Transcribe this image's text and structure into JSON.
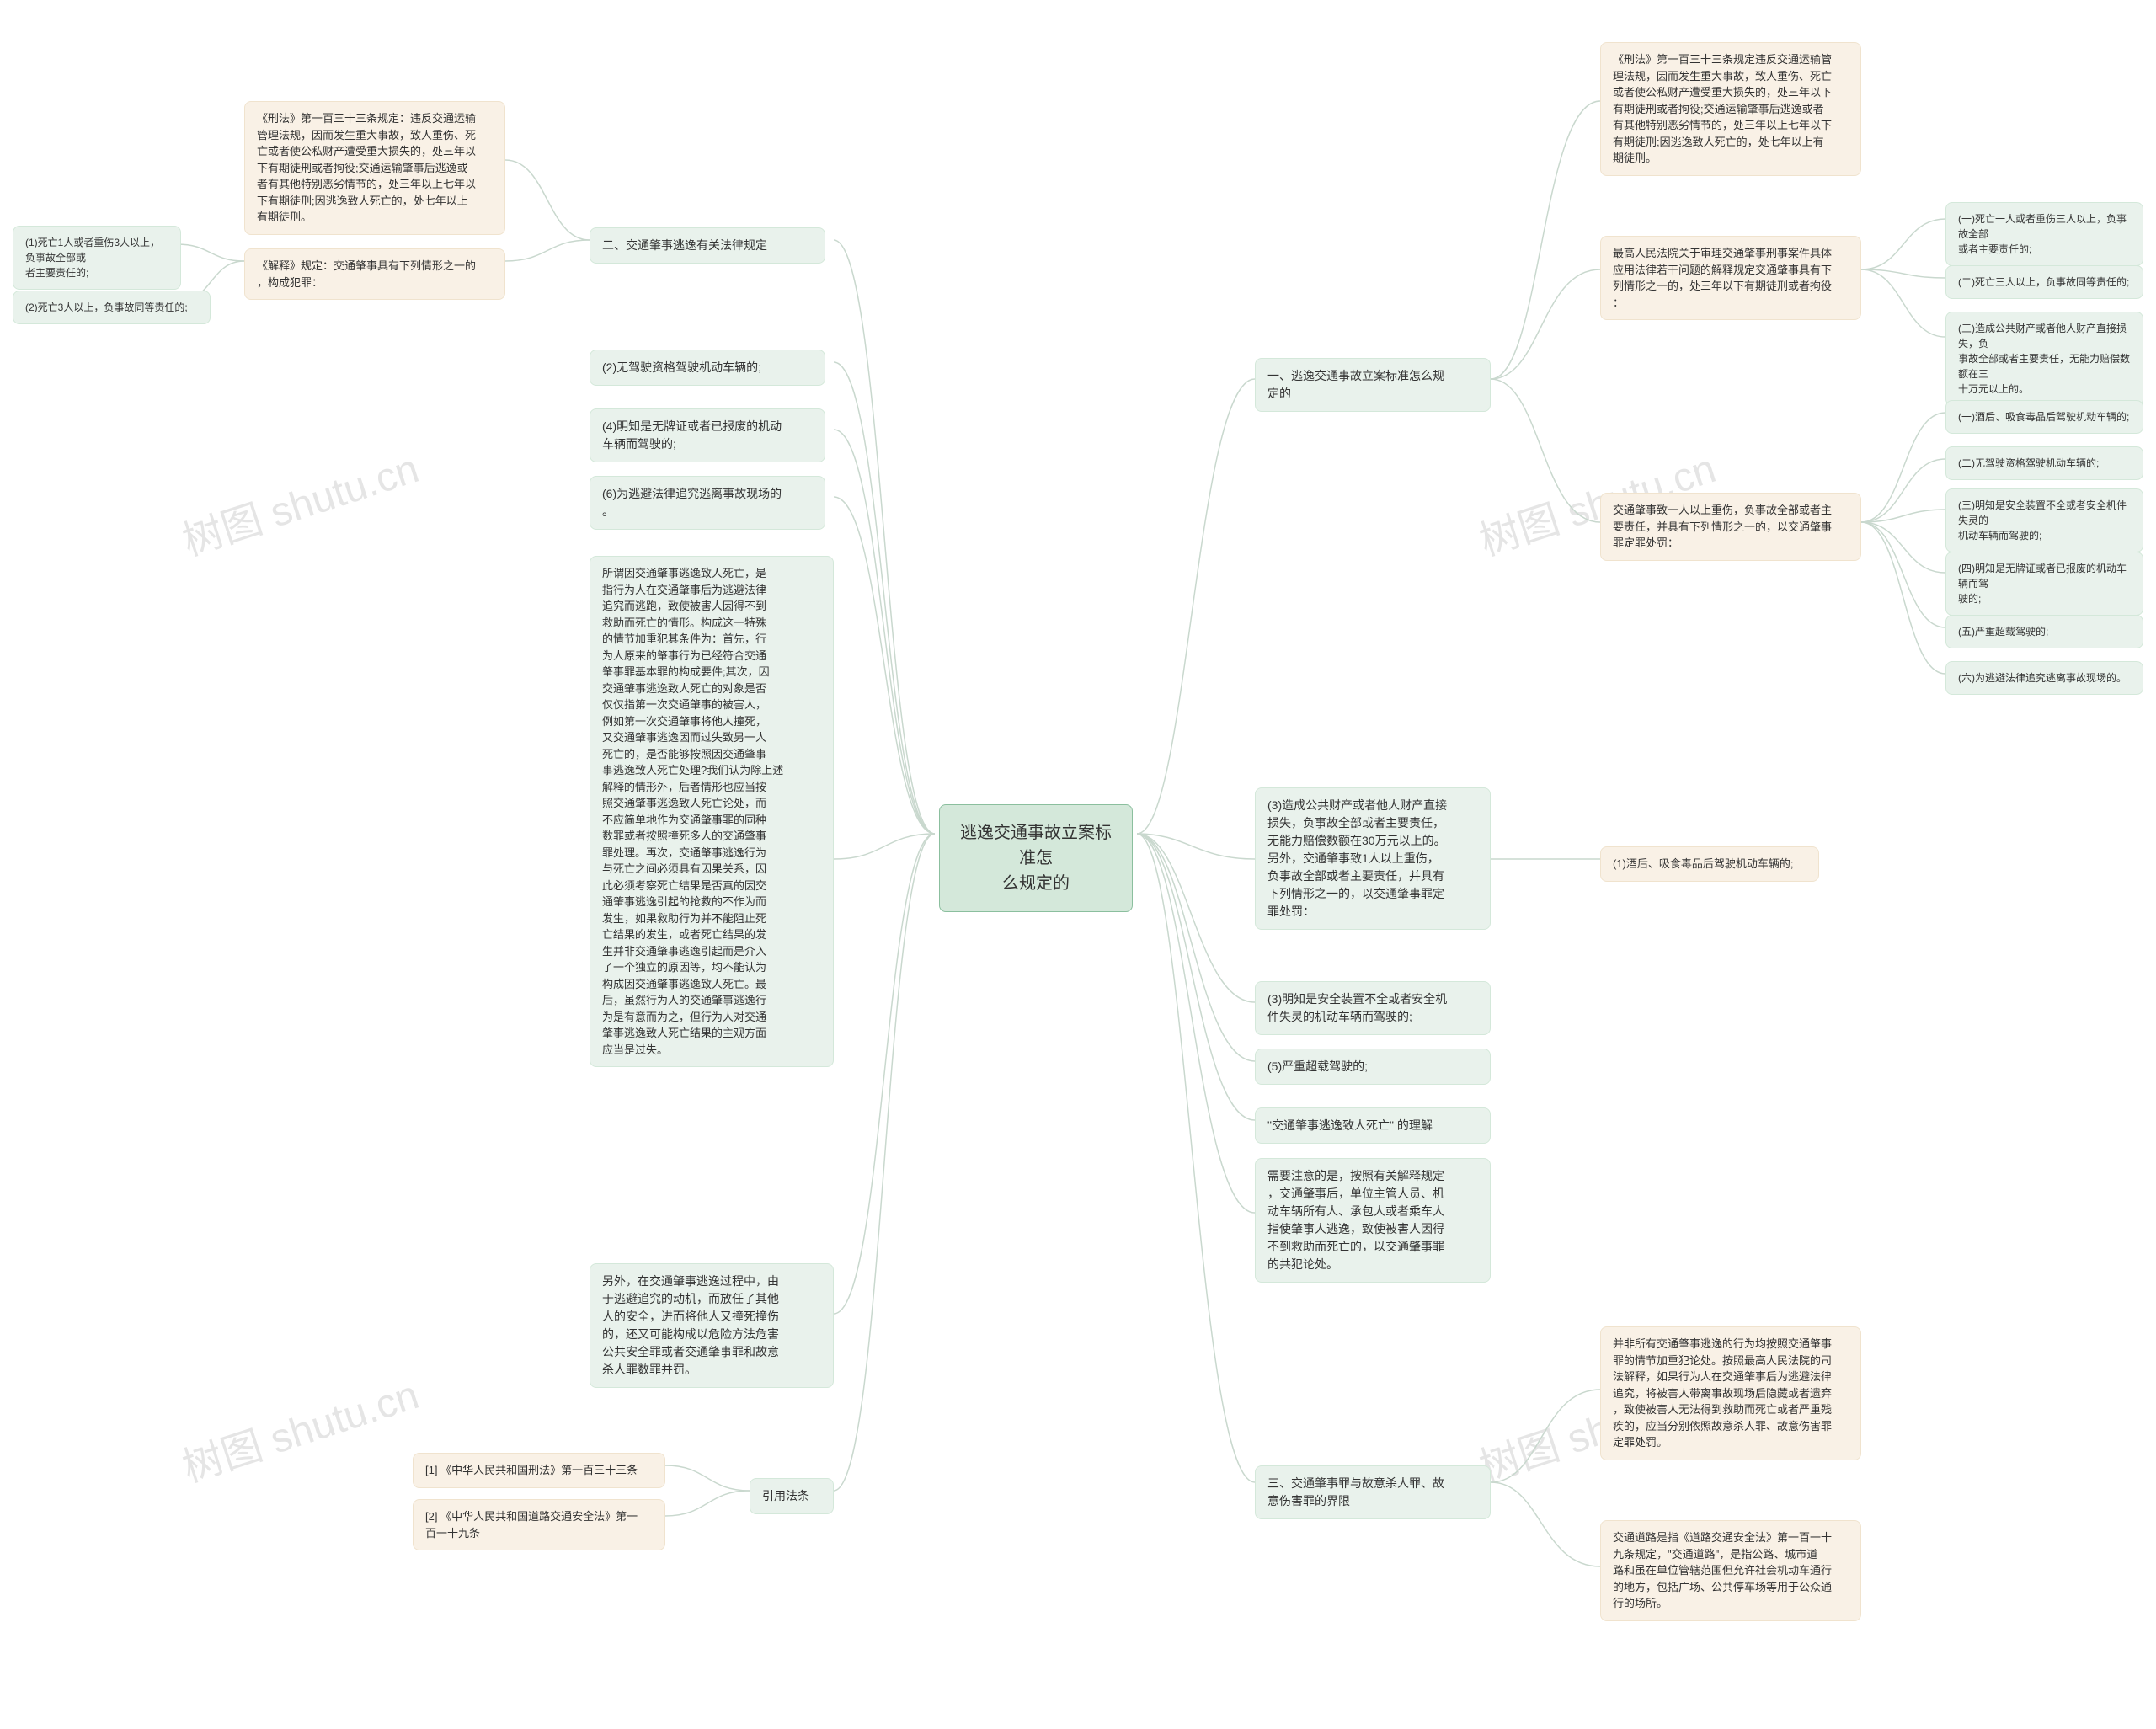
{
  "watermark_text": "树图 shutu.cn",
  "center": {
    "line1": "逃逸交通事故立案标准怎",
    "line2": "么规定的"
  },
  "colors": {
    "center_bg": "#d4e8da",
    "center_border": "#8bbf9e",
    "green_bg": "#e9f2ec",
    "green_border": "#d4e8da",
    "orange_bg": "#f9f1e6",
    "orange_border": "#f0e3ce",
    "connector": "#c9d8ce",
    "watermark": "#d0d0d0"
  },
  "right": {
    "r1": "一、逃逸交通事故立案标准怎么规\n定的",
    "r1a": "《刑法》第一百三十三条规定违反交通运输管\n理法规，因而发生重大事故，致人重伤、死亡\n或者使公私财产遭受重大损失的，处三年以下\n有期徒刑或者拘役;交通运输肇事后逃逸或者\n有其他特别恶劣情节的，处三年以上七年以下\n有期徒刑;因逃逸致人死亡的，处七年以上有\n期徒刑。",
    "r1b": "最高人民法院关于审理交通肇事刑事案件具体\n应用法律若干问题的解释规定交通肇事具有下\n列情形之一的，处三年以下有期徒刑或者拘役\n：",
    "r1b1": "(一)死亡一人或者重伤三人以上，负事故全部\n或者主要责任的;",
    "r1b2": "(二)死亡三人以上，负事故同等责任的;",
    "r1b3": "(三)造成公共财产或者他人财产直接损失，负\n事故全部或者主要责任，无能力赔偿数额在三\n十万元以上的。",
    "r1c": "交通肇事致一人以上重伤，负事故全部或者主\n要责任，并具有下列情形之一的，以交通肇事\n罪定罪处罚：",
    "r1c1": "(一)酒后、吸食毒品后驾驶机动车辆的;",
    "r1c2": "(二)无驾驶资格驾驶机动车辆的;",
    "r1c3": "(三)明知是安全装置不全或者安全机件失灵的\n机动车辆而驾驶的;",
    "r1c4": "(四)明知是无牌证或者已报废的机动车辆而驾\n驶的;",
    "r1c5": "(五)严重超载驾驶的;",
    "r1c6": "(六)为逃避法律追究逃离事故现场的。",
    "r2": "(3)造成公共财产或者他人财产直接\n损失，负事故全部或者主要责任，\n无能力赔偿数额在30万元以上的。\n另外，交通肇事致1人以上重伤，\n负事故全部或者主要责任，并具有\n下列情形之一的，以交通肇事罪定\n罪处罚：",
    "r2a": "(1)酒后、吸食毒品后驾驶机动车辆的;",
    "r3": "(3)明知是安全装置不全或者安全机\n件失灵的机动车辆而驾驶的;",
    "r4": "(5)严重超载驾驶的;",
    "r5": "\"交通肇事逃逸致人死亡\" 的理解",
    "r6": "需要注意的是，按照有关解释规定\n，交通肇事后，单位主管人员、机\n动车辆所有人、承包人或者乘车人\n指使肇事人逃逸，致使被害人因得\n不到救助而死亡的，以交通肇事罪\n的共犯论处。",
    "r7": "三、交通肇事罪与故意杀人罪、故\n意伤害罪的界限",
    "r7a": "并非所有交通肇事逃逸的行为均按照交通肇事\n罪的情节加重犯论处。按照最高人民法院的司\n法解释，如果行为人在交通肇事后为逃避法律\n追究，将被害人带离事故现场后隐藏或者遗弃\n，致使被害人无法得到救助而死亡或者严重残\n疾的，应当分别依照故意杀人罪、故意伤害罪\n定罪处罚。",
    "r7b": "交通道路是指《道路交通安全法》第一百一十\n九条规定，\"交通道路\"，是指公路、城市道\n路和虽在单位管辖范围但允许社会机动车通行\n的地方，包括广场、公共停车场等用于公众通\n行的场所。"
  },
  "left": {
    "l1": "二、交通肇事逃逸有关法律规定",
    "l1a": "《刑法》第一百三十三条规定：违反交通运输\n管理法规，因而发生重大事故，致人重伤、死\n亡或者使公私财产遭受重大损失的，处三年以\n下有期徒刑或者拘役;交通运输肇事后逃逸或\n者有其他特别恶劣情节的，处三年以上七年以\n下有期徒刑;因逃逸致人死亡的，处七年以上\n有期徒刑。",
    "l1b": "《解释》规定：交通肇事具有下列情形之一的\n，构成犯罪：",
    "l1b1": "(1)死亡1人或者重伤3人以上，负事故全部或\n者主要责任的;",
    "l1b2": "(2)死亡3人以上，负事故同等责任的;",
    "l2": "(2)无驾驶资格驾驶机动车辆的;",
    "l3": "(4)明知是无牌证或者已报废的机动\n车辆而驾驶的;",
    "l4": "(6)为逃避法律追究逃离事故现场的\n。",
    "l5": "所谓因交通肇事逃逸致人死亡，是\n指行为人在交通肇事后为逃避法律\n追究而逃跑，致使被害人因得不到\n救助而死亡的情形。构成这一特殊\n的情节加重犯其条件为：首先，行\n为人原来的肇事行为已经符合交通\n肇事罪基本罪的构成要件;其次，因\n交通肇事逃逸致人死亡的对象是否\n仅仅指第一次交通肇事的被害人，\n例如第一次交通肇事将他人撞死，\n又交通肇事逃逸因而过失致另一人\n死亡的，是否能够按照因交通肇事\n事逃逸致人死亡处理?我们认为除上述\n解释的情形外，后者情形也应当按\n照交通肇事逃逸致人死亡论处，而\n不应简单地作为交通肇事罪的同种\n数罪或者按照撞死多人的交通肇事\n罪处理。再次，交通肇事逃逸行为\n与死亡之间必须具有因果关系，因\n此必须考察死亡结果是否真的因交\n通肇事逃逸引起的抢救的不作为而\n发生，如果救助行为并不能阻止死\n亡结果的发生，或者死亡结果的发\n生并非交通肇事逃逸引起而是介入\n了一个独立的原因等，均不能认为\n构成因交通肇事逃逸致人死亡。最\n后，虽然行为人的交通肇事逃逸行\n为是有意而为之，但行为人对交通\n肇事逃逸致人死亡结果的主观方面\n应当是过失。",
    "l6": "另外，在交通肇事逃逸过程中，由\n于逃避追究的动机，而放任了其他\n人的安全，进而将他人又撞死撞伤\n的，还又可能构成以危险方法危害\n公共安全罪或者交通肇事罪和故意\n杀人罪数罪并罚。",
    "l7": "引用法条",
    "l7a": "[1] 《中华人民共和国刑法》第一百三十三条",
    "l7b": "[2] 《中华人民共和国道路交通安全法》第一\n百一十九条"
  }
}
